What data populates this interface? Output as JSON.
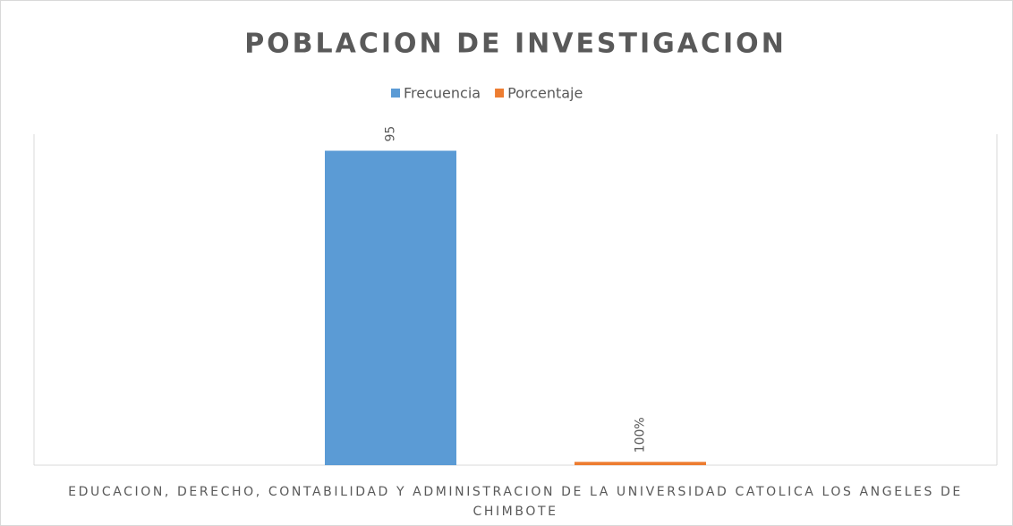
{
  "chart_data": {
    "type": "bar",
    "title": "POBLACION  DE INVESTIGACION",
    "categories": [
      "EDUCACION, DERECHO, CONTABILIDAD Y ADMINISTRACION DE LA UNIVERSIDAD CATOLICA LOS ANGELES DE CHIMBOTE"
    ],
    "series": [
      {
        "name": "Frecuencia",
        "color": "#5b9bd5",
        "values": [
          95
        ]
      },
      {
        "name": "Porcentaje",
        "color": "#ed7d31",
        "values": [
          1
        ],
        "value_labels": [
          "100%"
        ]
      }
    ],
    "ylim": [
      0,
      100
    ],
    "legend": "top"
  }
}
